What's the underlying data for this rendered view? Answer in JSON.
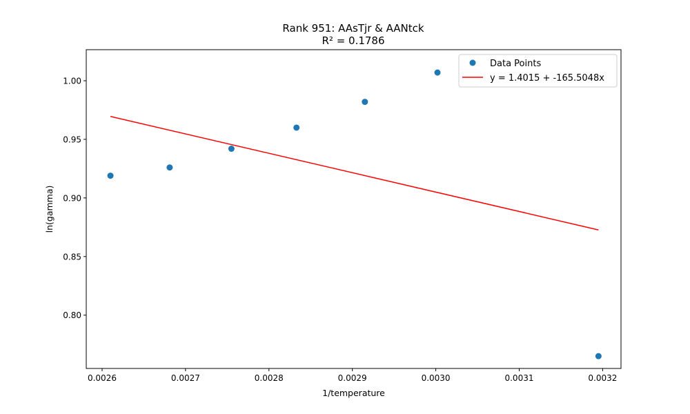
{
  "chart_data": {
    "type": "scatter",
    "title": "Rank 951: AAsTjr & AANtck",
    "subtitle": "R² = 0.1786",
    "xlabel": "1/temperature",
    "ylabel": "ln(gamma)",
    "xlim": [
      0.002581,
      0.003222
    ],
    "ylim": [
      0.7545,
      1.0265
    ],
    "x_ticks": [
      0.0026,
      0.0027,
      0.0028,
      0.0029,
      0.003,
      0.0031,
      0.0032
    ],
    "x_tick_labels": [
      "0.0026",
      "0.0027",
      "0.0028",
      "0.0029",
      "0.0030",
      "0.0031",
      "0.0032"
    ],
    "y_ticks": [
      0.8,
      0.85,
      0.9,
      0.95,
      1.0
    ],
    "y_tick_labels": [
      "0.80",
      "0.85",
      "0.90",
      "0.95",
      "1.00"
    ],
    "grid": false,
    "legend_position": "top-right",
    "series": [
      {
        "name": "Data Points",
        "kind": "scatter",
        "color": "#1f77b4",
        "x": [
          0.00261,
          0.002681,
          0.002755,
          0.002833,
          0.002915,
          0.003002,
          0.003195
        ],
        "y": [
          0.919,
          0.926,
          0.942,
          0.96,
          0.982,
          1.007,
          0.765
        ]
      },
      {
        "name": "y = 1.4015 + -165.5048x",
        "kind": "line",
        "color": "#ff0000",
        "intercept": 1.4015,
        "slope": -165.5048,
        "x": [
          0.00261,
          0.003195
        ]
      }
    ]
  }
}
